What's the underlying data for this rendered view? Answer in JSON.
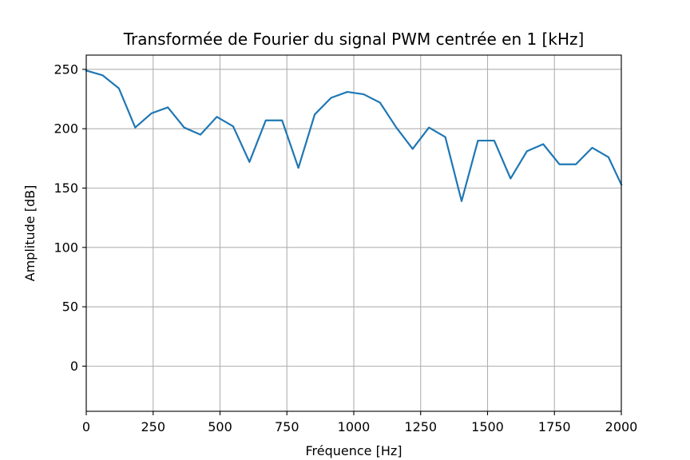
{
  "chart_data": {
    "type": "line",
    "title": "Transformée de Fourier du signal PWM centrée en 1 [kHz]",
    "xlabel": "Fréquence [Hz]",
    "ylabel": "Amplitude [dB]",
    "xlim": [
      0,
      2000
    ],
    "ylim": [
      -38,
      262
    ],
    "xticks": [
      0,
      250,
      500,
      750,
      1000,
      1250,
      1500,
      1750,
      2000
    ],
    "yticks": [
      0,
      50,
      100,
      150,
      200,
      250
    ],
    "grid": true,
    "line_color": "#1f77b4",
    "series": [
      {
        "x": [
          0,
          61,
          122,
          183,
          244,
          305,
          366,
          427,
          488,
          549,
          610,
          671,
          732,
          793,
          854,
          915,
          976,
          1037,
          1098,
          1159,
          1220,
          1281,
          1342,
          1403,
          1464,
          1525,
          1586,
          1647,
          1708,
          1769,
          1830,
          1891,
          1952,
          2000
        ],
        "y": [
          249,
          245,
          234,
          201,
          213,
          218,
          201,
          195,
          210,
          202,
          172,
          207,
          207,
          167,
          212,
          226,
          231,
          229,
          222,
          201,
          183,
          201,
          193,
          139,
          190,
          190,
          158,
          181,
          187,
          170,
          170,
          184,
          176,
          153
        ]
      }
    ]
  }
}
